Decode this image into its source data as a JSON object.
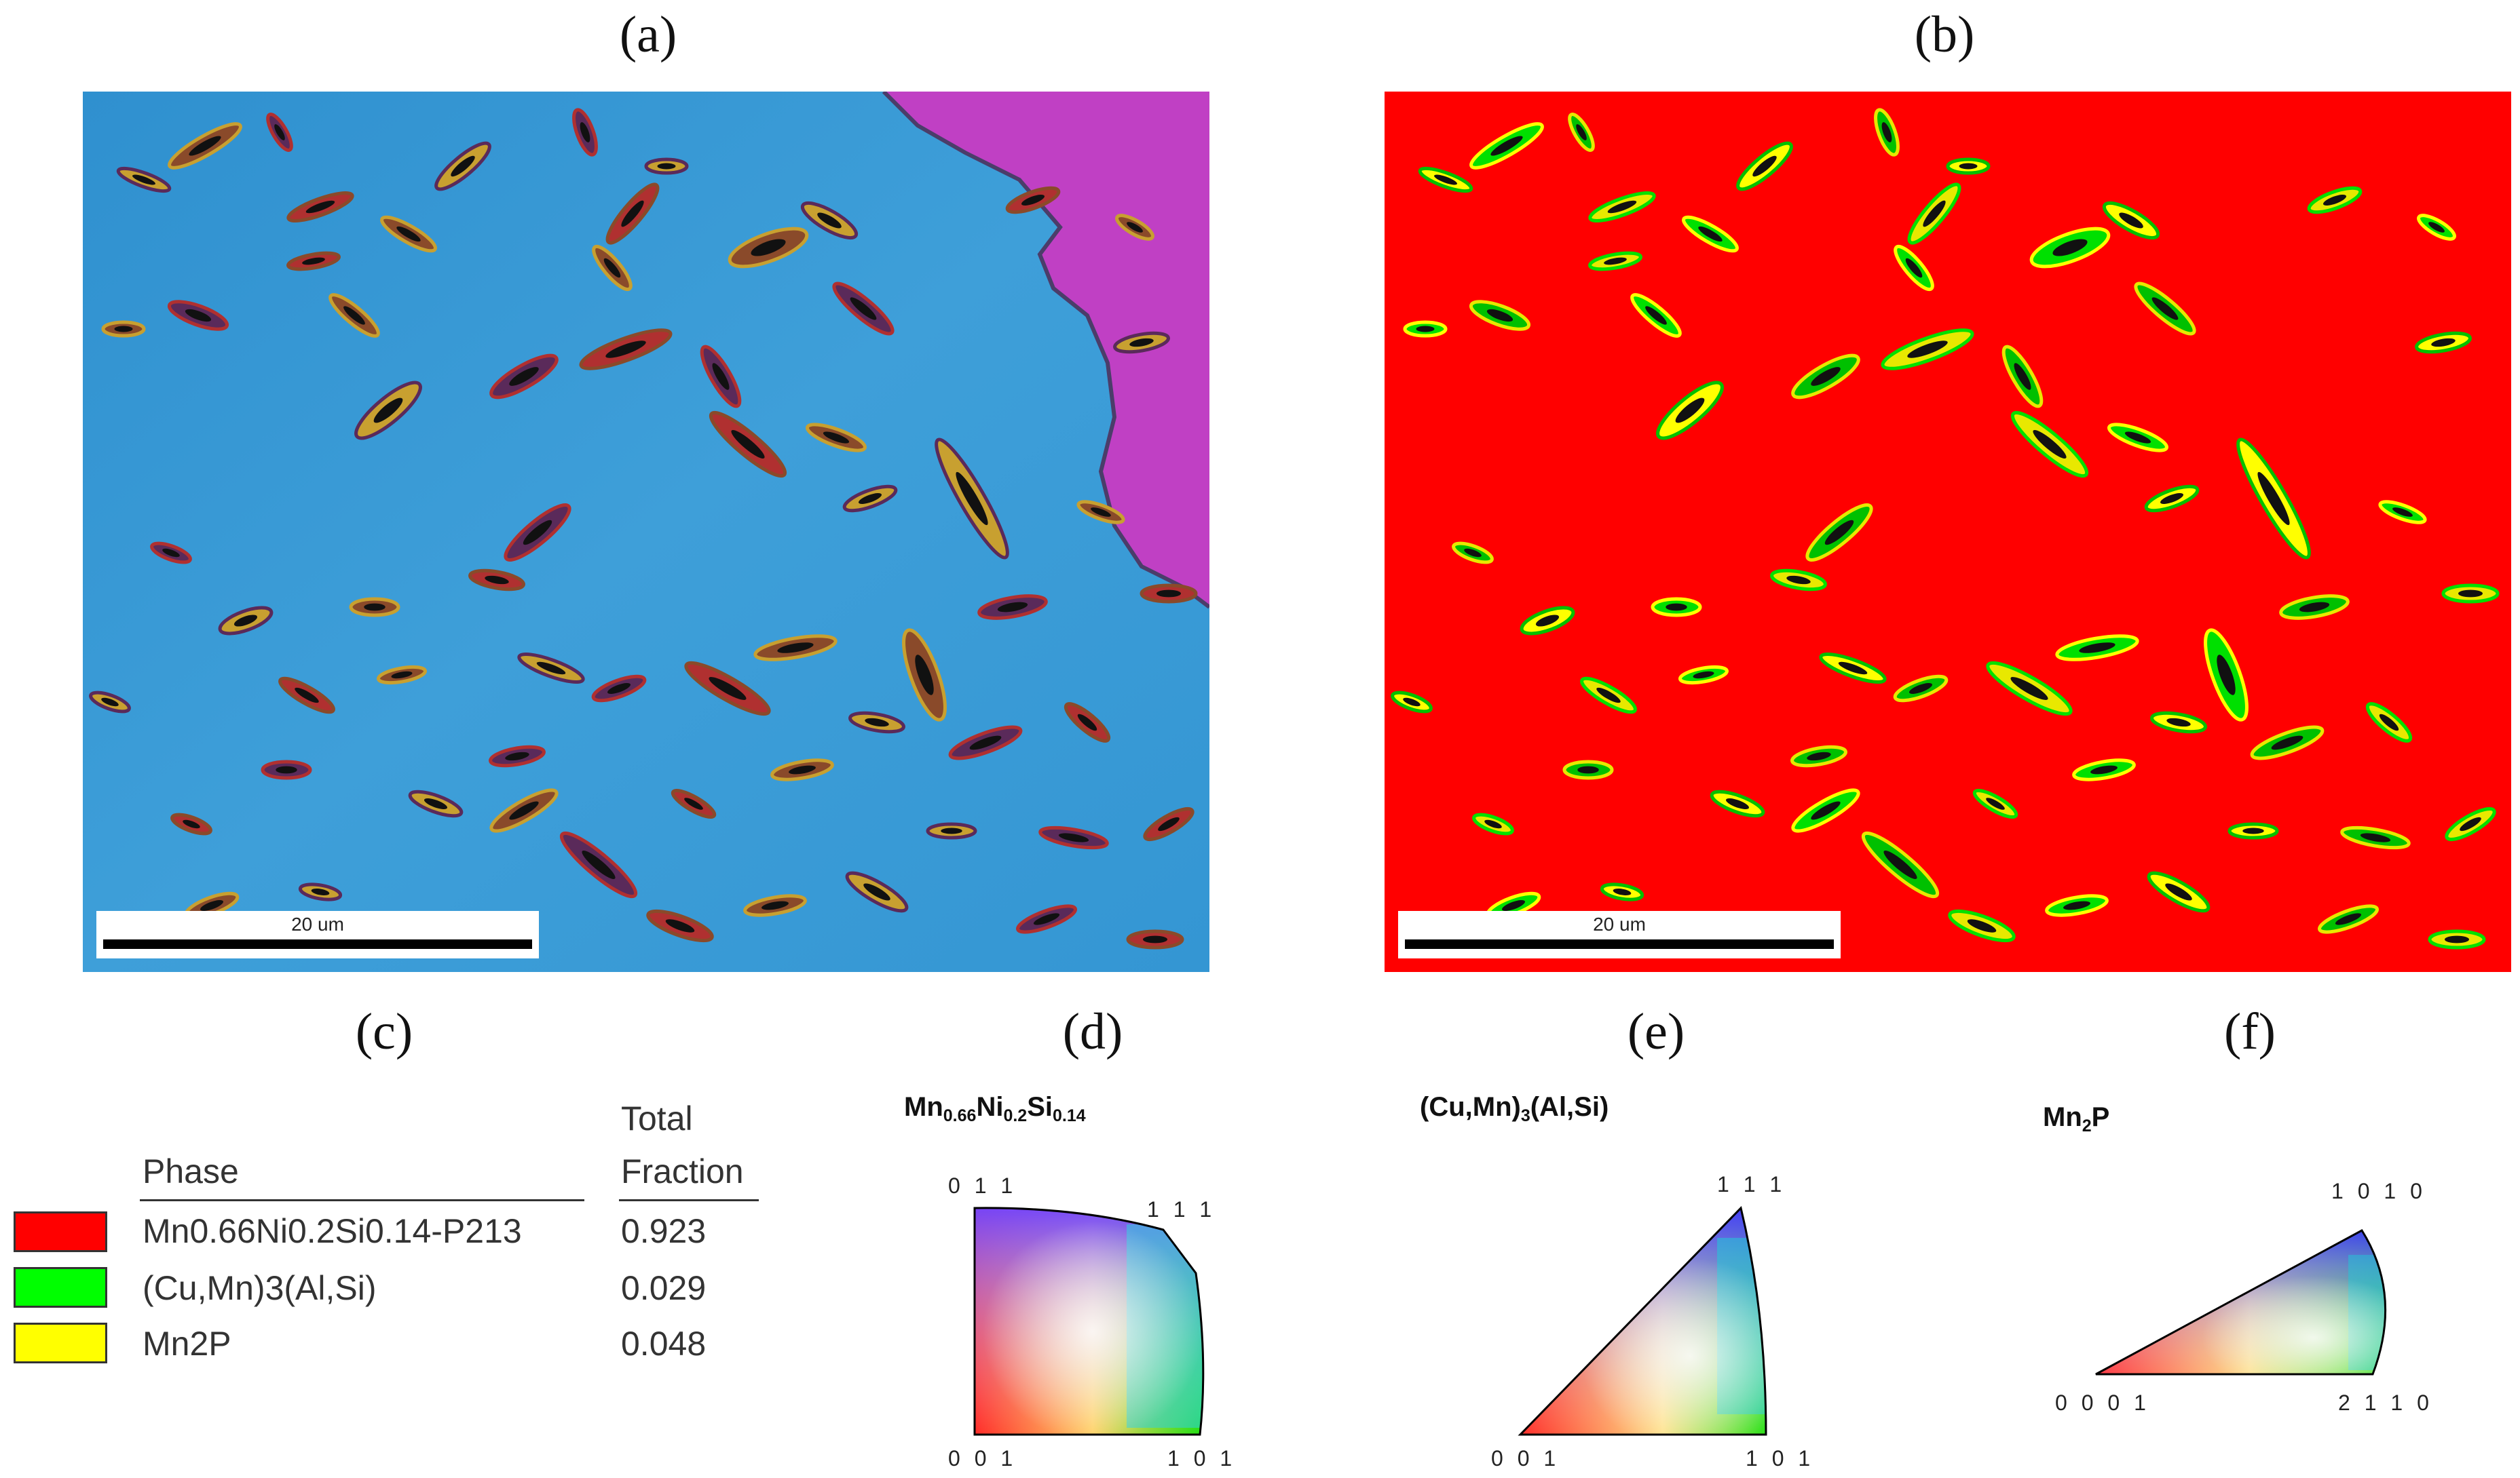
{
  "panels": {
    "a": {
      "label": "(a)",
      "scale_bar": "20 um"
    },
    "b": {
      "label": "(b)",
      "scale_bar": "20 um"
    },
    "c": {
      "label": "(c)"
    },
    "d": {
      "label": "(d)",
      "title_base": "Mn",
      "title_sub1": "0.66",
      "title_mid1": "Ni",
      "title_sub2": "0.2",
      "title_mid2": "Si",
      "title_sub3": "0.14",
      "corner_top_left": "0 1 1",
      "corner_top_right": "1 1 1",
      "corner_bottom_left": "0 0 1",
      "corner_bottom_right": "1 0 1"
    },
    "e": {
      "label": "(e)",
      "title_pre": "(Cu,Mn)",
      "title_sub": "3",
      "title_post": "(Al,Si)",
      "corner_top": "1 1 1",
      "corner_bottom_left": "0 0 1",
      "corner_bottom_right": "1 0 1"
    },
    "f": {
      "label": "(f)",
      "title_pre": "Mn",
      "title_sub": "2",
      "title_post": "P",
      "corner_top": "1 0 1 0",
      "corner_bottom_left": "0 0 0 1",
      "corner_bottom_right": "2 1 1 0"
    }
  },
  "legend": {
    "header_phase": "Phase",
    "header_total": "Total",
    "header_fraction": "Fraction",
    "rows": [
      {
        "name": "Mn0.66Ni0.2Si0.14-P213",
        "fraction": "0.923",
        "color": "#ff0000"
      },
      {
        "name": "(Cu,Mn)3(Al,Si)",
        "fraction": "0.029",
        "color": "#00ff00"
      },
      {
        "name": "Mn2P",
        "fraction": "0.048",
        "color": "#ffff00"
      }
    ]
  },
  "colors": {
    "ipf_map_matrix": "#3a9ad6",
    "ipf_map_grain2": "#c23fc4",
    "phase_map_matrix": "#ff0000",
    "phase_green": "#00ff00",
    "phase_yellow": "#ffff00"
  }
}
